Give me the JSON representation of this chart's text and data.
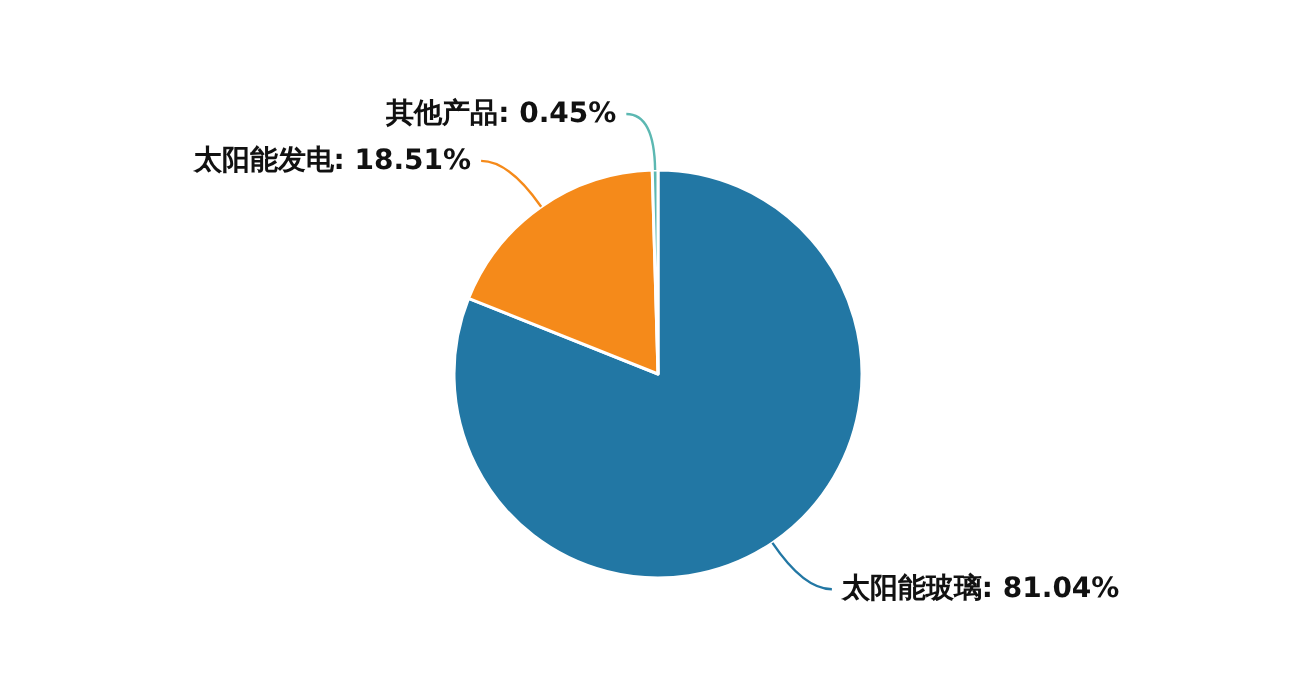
{
  "chart_data": {
    "type": "pie",
    "categories": [
      "太阳能玻璃",
      "太阳能发电",
      "其他产品"
    ],
    "values": [
      81.04,
      18.51,
      0.45
    ],
    "value_labels": [
      "81.04%",
      "18.51%",
      "0.45%"
    ],
    "colors": [
      "#2277a4",
      "#f58a1a",
      "#5cb8b2"
    ]
  }
}
